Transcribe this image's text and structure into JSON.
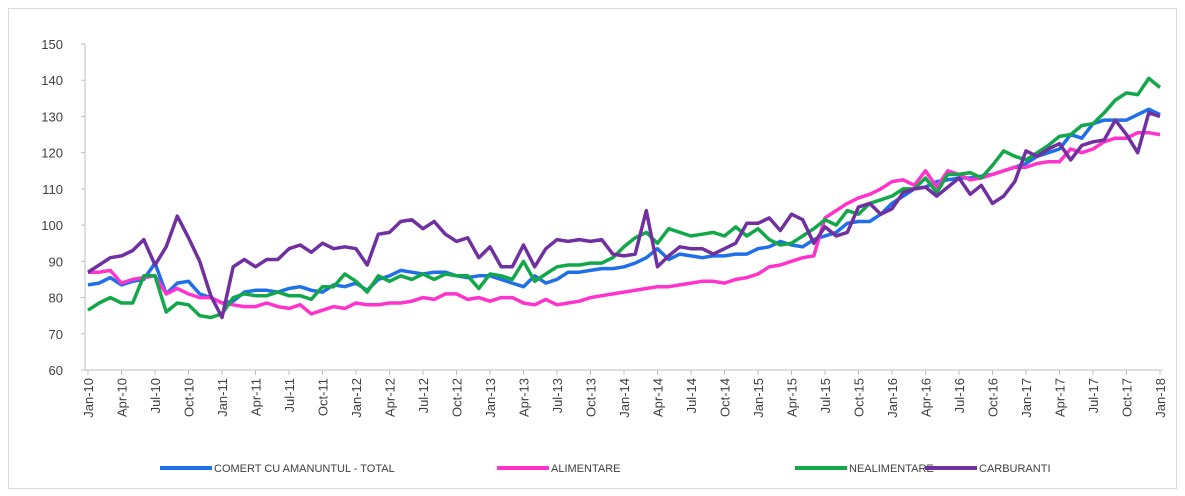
{
  "chart_data": {
    "type": "line",
    "categories": [
      "Jan-10",
      null,
      null,
      "Apr-10",
      null,
      null,
      "Jul-10",
      null,
      null,
      "Oct-10",
      null,
      null,
      "Jan-11",
      null,
      null,
      "Apr-11",
      null,
      null,
      "Jul-11",
      null,
      null,
      "Oct-11",
      null,
      null,
      "Jan-12",
      null,
      null,
      "Apr-12",
      null,
      null,
      "Jul-12",
      null,
      null,
      "Oct-12",
      null,
      null,
      "Jan-13",
      null,
      null,
      "Apr-13",
      null,
      null,
      "Jul-13",
      null,
      null,
      "Oct-13",
      null,
      null,
      "Jan-14",
      null,
      null,
      "Apr-14",
      null,
      null,
      "Jul-14",
      null,
      null,
      "Oct-14",
      null,
      null,
      "Jan-15",
      null,
      null,
      "Apr-15",
      null,
      null,
      "Jul-15",
      null,
      null,
      "Oct-15",
      null,
      null,
      "Jan-16",
      null,
      null,
      "Apr-16",
      null,
      null,
      "Jul-16",
      null,
      null,
      "Oct-16",
      null,
      null,
      "Jan-17",
      null,
      null,
      "Apr-17",
      null,
      null,
      "Jul-17",
      null,
      null,
      "Oct-17",
      null,
      null,
      "Jan-18"
    ],
    "series": [
      {
        "name": "COMERT CU AMANUNTUL - TOTAL",
        "color": "#1f6fe8",
        "values": [
          83.5,
          84,
          85.5,
          83.5,
          84.5,
          85,
          89.5,
          81,
          84,
          84.5,
          81,
          80,
          78.5,
          79,
          81.5,
          82,
          82,
          81.5,
          82.5,
          83,
          82,
          81.5,
          83.5,
          83,
          84,
          82,
          85,
          86,
          87.5,
          87,
          86.5,
          87,
          87,
          86,
          85.5,
          86,
          86,
          85,
          84,
          83,
          86,
          84,
          85,
          87,
          87,
          87.5,
          88,
          88,
          88.5,
          89.5,
          91,
          93.5,
          90.5,
          92,
          91.5,
          91,
          91.5,
          91.5,
          92,
          92,
          93.5,
          94,
          95.5,
          94.5,
          94,
          96,
          97,
          98,
          100.5,
          101,
          101,
          103,
          106,
          108,
          110,
          110.5,
          112,
          112.5,
          113,
          113,
          113.5,
          114,
          115,
          116,
          117,
          119,
          120,
          121,
          125,
          124,
          128,
          129,
          129,
          129,
          130.5,
          132,
          130.5
        ]
      },
      {
        "name": "ALIMENTARE",
        "color": "#ff33cc",
        "values": [
          87,
          87,
          87.5,
          84,
          85,
          85.5,
          86,
          81,
          82.5,
          81,
          80,
          80,
          78.5,
          78,
          77.5,
          77.5,
          78.5,
          77.5,
          77,
          78,
          75.5,
          76.5,
          77.5,
          77,
          78.5,
          78,
          78,
          78.5,
          78.5,
          79,
          80,
          79.5,
          81,
          81,
          79.5,
          80,
          79,
          80,
          80,
          78.5,
          78,
          79.5,
          78,
          78.5,
          79,
          80,
          80.5,
          81,
          81.5,
          82,
          82.5,
          83,
          83,
          83.5,
          84,
          84.5,
          84.5,
          84,
          85,
          85.5,
          86.5,
          88.5,
          89,
          90,
          91,
          91.5,
          102,
          104,
          106,
          107.5,
          108.5,
          110,
          112,
          112.5,
          111,
          115,
          110.5,
          115,
          114,
          112.5,
          113,
          114,
          115,
          116,
          116,
          117,
          117.5,
          117.5,
          121,
          120,
          121,
          123,
          124,
          124,
          125.5,
          125.5,
          125
        ]
      },
      {
        "name": "NEALIMENTARE",
        "color": "#12a84a",
        "values": [
          76.5,
          78.5,
          80,
          78.5,
          78.5,
          86,
          86,
          76,
          78.5,
          78,
          75,
          74.5,
          75.5,
          80,
          81,
          80.5,
          80.5,
          81.5,
          80.5,
          80.5,
          79.5,
          83,
          83,
          86.5,
          84.5,
          81.5,
          86,
          84.5,
          86,
          85,
          86.5,
          85,
          86.5,
          86,
          86,
          82.5,
          86.5,
          86,
          85,
          90,
          84.5,
          86.5,
          88.5,
          89,
          89,
          89.5,
          89.5,
          91,
          94,
          96.5,
          98,
          95,
          99,
          98,
          97,
          97.5,
          98,
          97,
          99.5,
          97,
          99,
          96,
          94.5,
          95,
          97,
          99,
          101.5,
          100,
          104,
          103,
          106,
          107,
          108,
          110,
          110,
          113,
          109,
          114,
          114,
          114.5,
          113,
          116.5,
          120.5,
          119,
          118,
          120,
          122,
          124.5,
          125,
          127.5,
          128,
          131,
          134.5,
          136.5,
          136,
          140.5,
          138
        ]
      },
      {
        "name": "CARBURANTI",
        "color": "#7030a0",
        "values": [
          87,
          89,
          91,
          91.5,
          93,
          96,
          89,
          94,
          102.5,
          96.5,
          90,
          80.5,
          74.5,
          88.5,
          90.5,
          88.5,
          90.5,
          90.5,
          93.5,
          94.5,
          92.5,
          95,
          93.5,
          94,
          93.5,
          89,
          97.5,
          98,
          101,
          101.5,
          99,
          101,
          97.5,
          95.5,
          96.5,
          91,
          94,
          88.5,
          88.5,
          94.5,
          88.5,
          93.5,
          96,
          95.5,
          96,
          95.5,
          96,
          92,
          91.5,
          92,
          104,
          88.5,
          91.5,
          94,
          93.5,
          93.5,
          92,
          93.5,
          95,
          100.5,
          100.5,
          102,
          98.5,
          103,
          101.5,
          95,
          99.5,
          97,
          98,
          105,
          106,
          103,
          104.5,
          109,
          110,
          110.5,
          108,
          110.5,
          113,
          108.5,
          111,
          106,
          108,
          112,
          120.5,
          119,
          121,
          122.5,
          118,
          122,
          123,
          123.5,
          129,
          125,
          120,
          131,
          130
        ]
      }
    ],
    "ylim": [
      60,
      150
    ],
    "yticks": [
      60,
      70,
      80,
      90,
      100,
      110,
      120,
      130,
      140,
      150
    ],
    "grid": false,
    "legend": "bottom"
  }
}
